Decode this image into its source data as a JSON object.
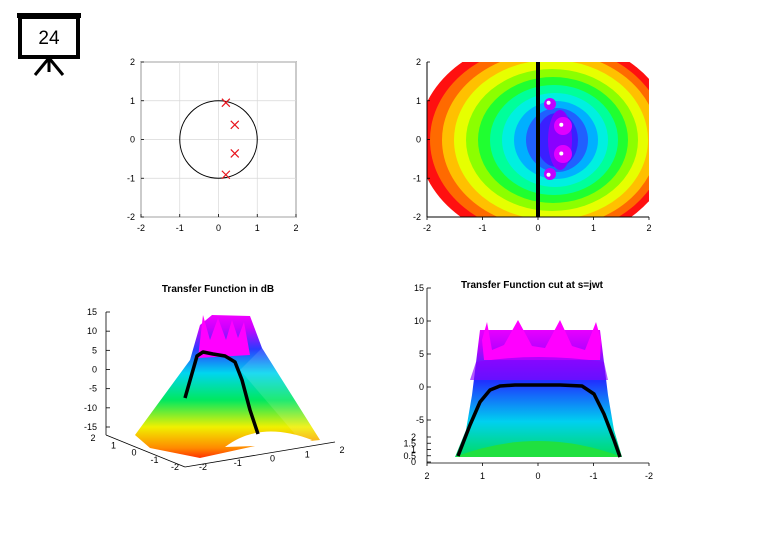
{
  "slide": {
    "number": "24",
    "icon": "presentation-board-icon"
  },
  "chart_data": [
    {
      "type": "scatter",
      "id": "pole-plot",
      "title": "",
      "xlabel": "",
      "ylabel": "",
      "xlim": [
        -2,
        2
      ],
      "ylim": [
        -2,
        2
      ],
      "xticks": [
        "-2",
        "-1",
        "0",
        "1",
        "2"
      ],
      "yticks": [
        "2",
        "1",
        "0",
        "-1",
        "-2"
      ],
      "grid": true,
      "unit_circle": {
        "center": [
          0,
          0
        ],
        "radius": 1
      },
      "marker": "x",
      "marker_color": "#e8141c",
      "points": [
        {
          "x": 0.19,
          "y": 0.95
        },
        {
          "x": 0.42,
          "y": 0.38
        },
        {
          "x": 0.42,
          "y": -0.36
        },
        {
          "x": 0.19,
          "y": -0.91
        }
      ]
    },
    {
      "type": "heatmap",
      "id": "pole-magnitude-map",
      "title": "",
      "xlim": [
        -2,
        2
      ],
      "ylim": [
        -2,
        2
      ],
      "xticks": [
        "-2",
        "-1",
        "0",
        "1",
        "2"
      ],
      "yticks": [
        "2",
        "1",
        "0",
        "-1",
        "-2"
      ],
      "colormap": "hsv",
      "poles": [
        {
          "x": 0.19,
          "y": 0.95
        },
        {
          "x": 0.42,
          "y": 0.38
        },
        {
          "x": 0.42,
          "y": -0.36
        },
        {
          "x": 0.19,
          "y": -0.91
        }
      ],
      "cut_line": {
        "x": 0,
        "color": "#000000"
      }
    },
    {
      "type": "surface",
      "id": "transfer-function-db",
      "title": "Transfer Function in dB",
      "zticks": [
        "15",
        "10",
        "5",
        "0",
        "-5",
        "-10",
        "-15"
      ],
      "yticks": [
        "2",
        "1",
        "0",
        "-1",
        "-2"
      ],
      "xticks": [
        "-2",
        "-1",
        "0",
        "1",
        "2"
      ],
      "colormap": "hsv"
    },
    {
      "type": "surface",
      "id": "transfer-function-cut",
      "title": "Transfer Function cut at s=jwt",
      "zticks": [
        "15",
        "10",
        "5",
        "0",
        "-5"
      ],
      "yticks": [
        "2",
        "1.5",
        "1",
        "0.5",
        "0"
      ],
      "xticks": [
        "2",
        "1",
        "0",
        "-1",
        "-2"
      ],
      "colormap": "hsv"
    }
  ]
}
